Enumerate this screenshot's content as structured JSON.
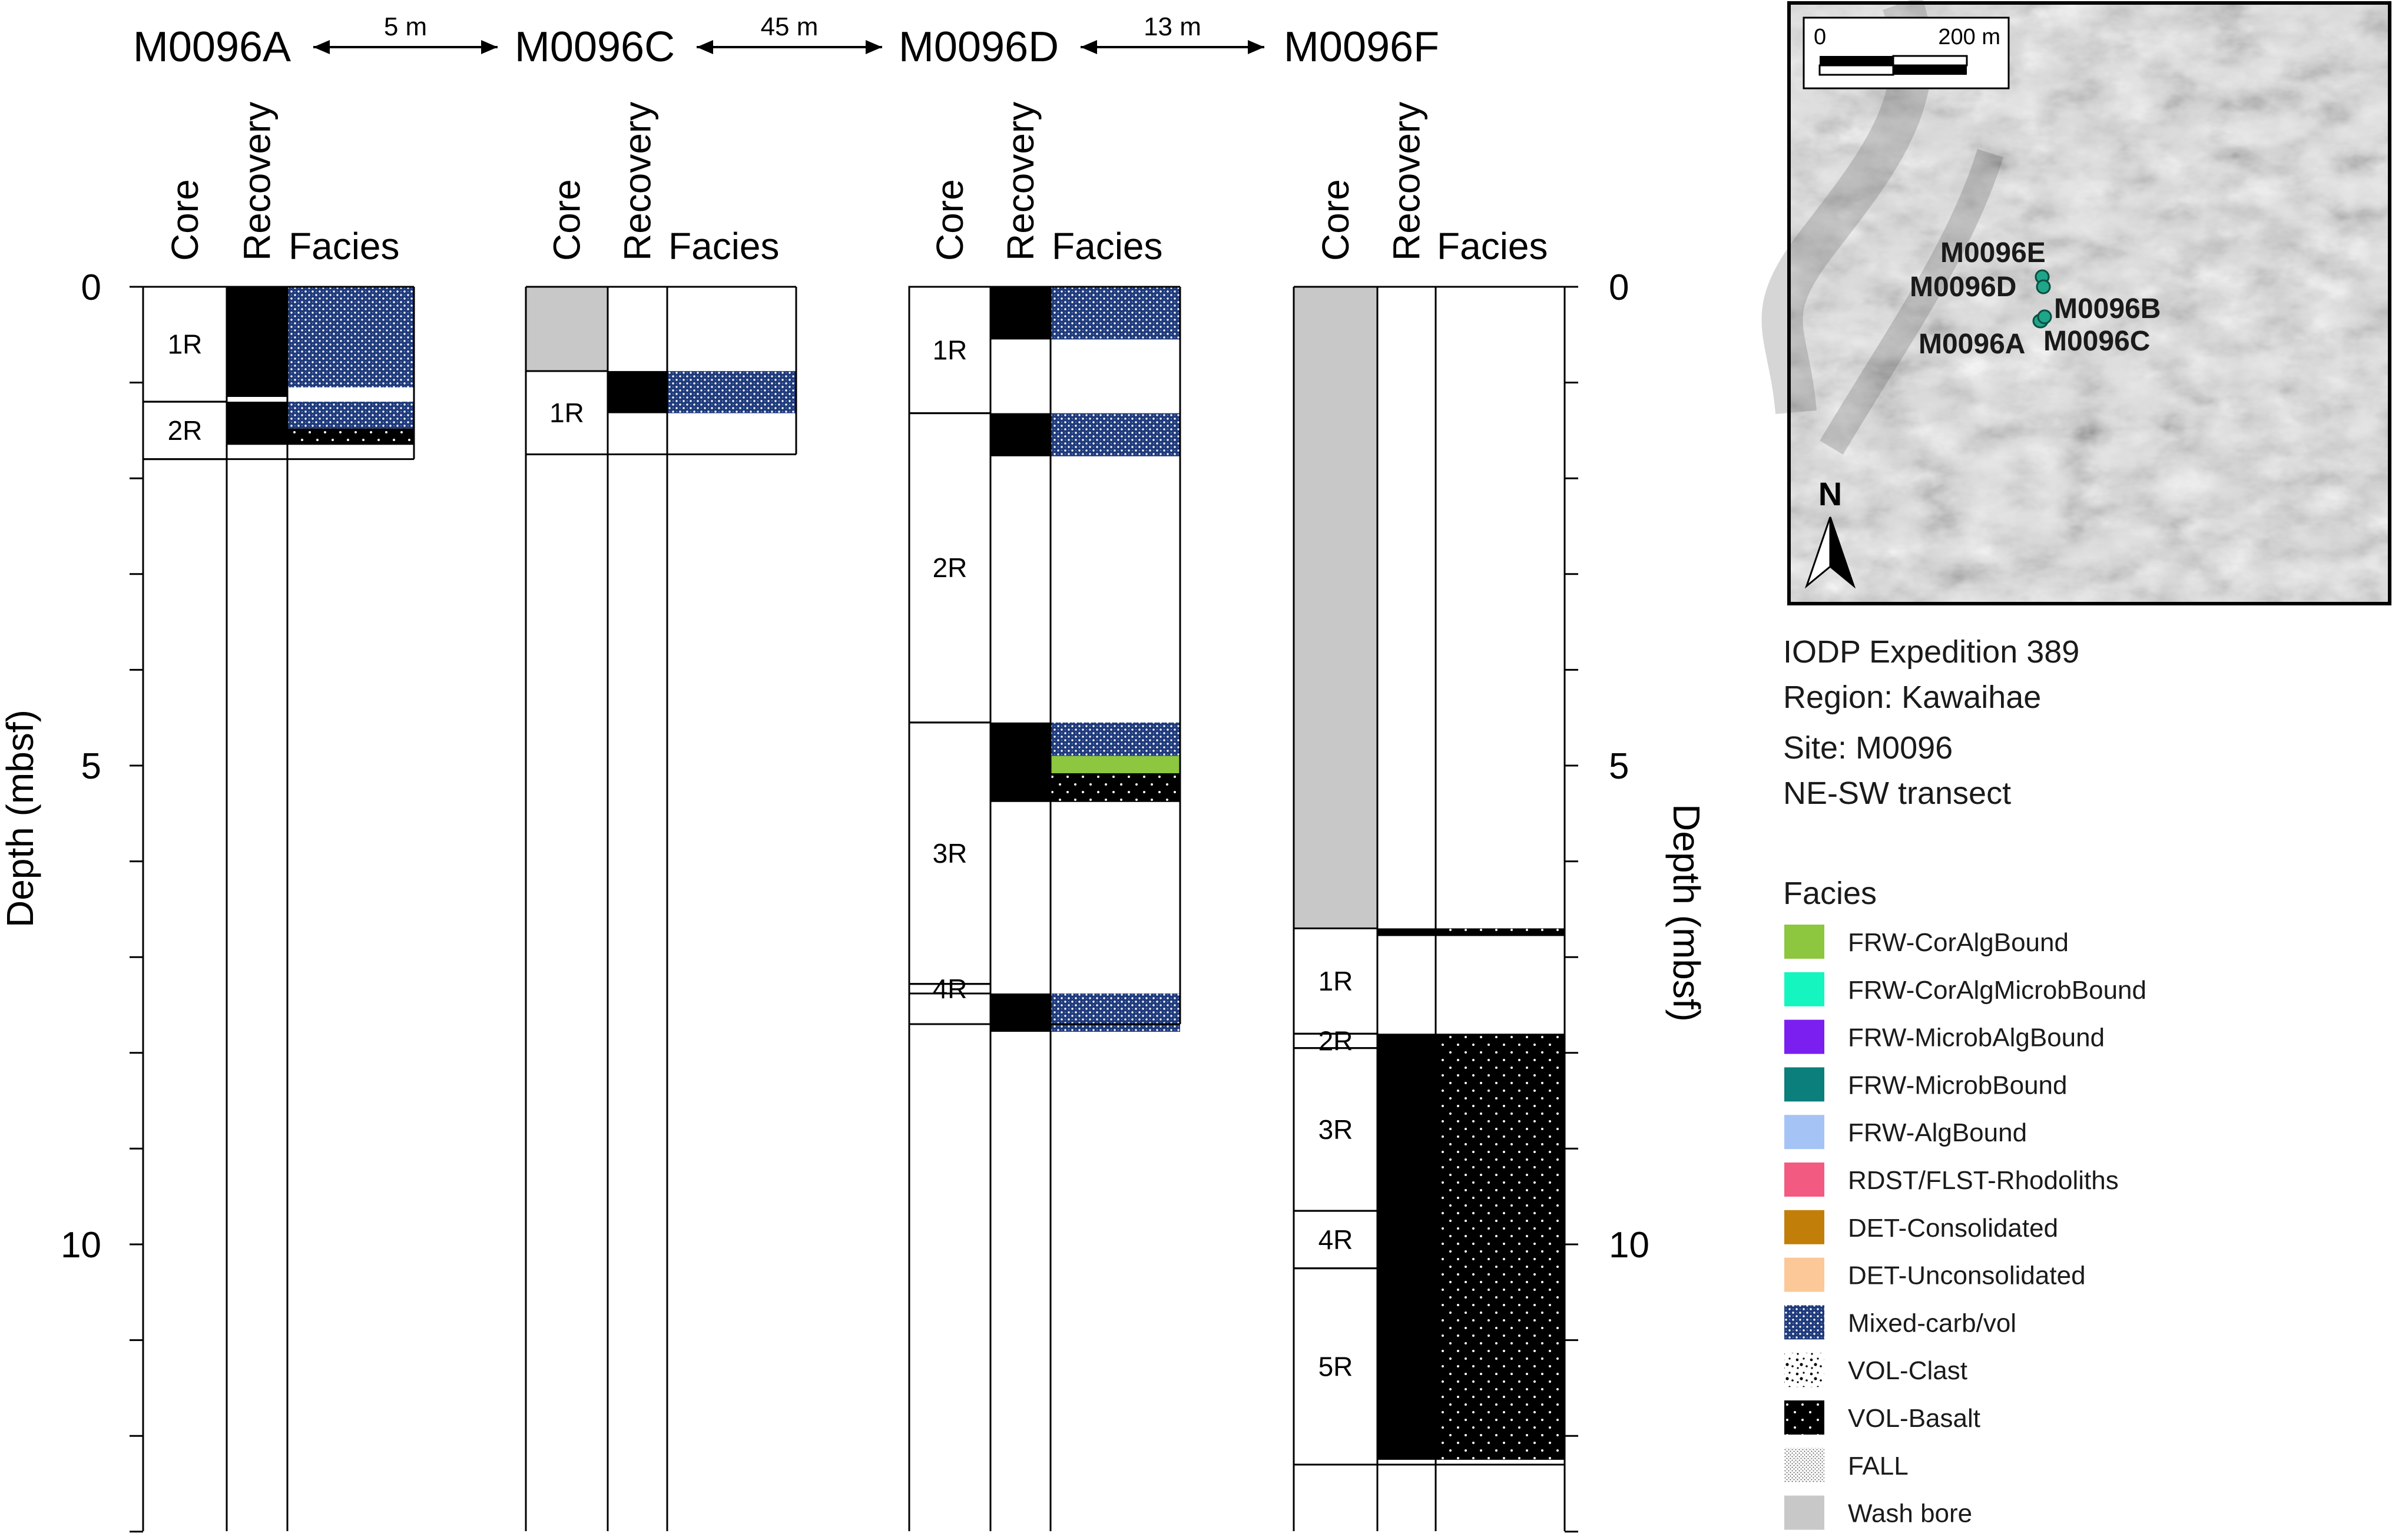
{
  "depth_axis": {
    "label": "Depth (mbsf)",
    "range": [
      0,
      13
    ],
    "major_ticks": [
      0,
      5,
      10
    ],
    "minor_step": 1
  },
  "column_headers": {
    "core": "Core",
    "recovery": "Recovery",
    "facies": "Facies"
  },
  "sites": [
    {
      "name": "M0096A",
      "hole_bottom": 1.8,
      "cores": [
        {
          "label": "1R",
          "top": 0,
          "bottom": 1.2
        },
        {
          "label": "2R",
          "top": 1.2,
          "bottom": 1.8
        }
      ],
      "wash": [],
      "recovery": [
        {
          "top": 0,
          "bottom": 1.15
        },
        {
          "top": 1.2,
          "bottom": 1.65
        }
      ],
      "facies": [
        {
          "type": "Mixed-carb/vol",
          "top": 0,
          "bottom": 1.05
        },
        {
          "type": "Mixed-carb/vol",
          "top": 1.2,
          "bottom": 1.48
        },
        {
          "type": "VOL-Basalt",
          "top": 1.48,
          "bottom": 1.65
        }
      ]
    },
    {
      "name": "M0096C",
      "hole_bottom": 1.75,
      "cores": [
        {
          "label": "1R",
          "top": 0.88,
          "bottom": 1.75
        }
      ],
      "wash": [
        {
          "top": 0,
          "bottom": 0.88
        }
      ],
      "recovery": [
        {
          "top": 0.88,
          "bottom": 1.32
        }
      ],
      "facies": [
        {
          "type": "Mixed-carb/vol",
          "top": 0.88,
          "bottom": 1.32
        }
      ]
    },
    {
      "name": "M0096D",
      "hole_bottom": 7.7,
      "cores": [
        {
          "label": "1R",
          "top": 0,
          "bottom": 1.32
        },
        {
          "label": "2R",
          "top": 1.32,
          "bottom": 4.55
        },
        {
          "label": "3R",
          "top": 4.55,
          "bottom": 7.28
        },
        {
          "label": "4R",
          "top": 7.28,
          "bottom": 7.38
        }
      ],
      "wash": [],
      "recovery": [
        {
          "top": 0,
          "bottom": 0.55
        },
        {
          "top": 1.32,
          "bottom": 1.77
        },
        {
          "top": 4.55,
          "bottom": 5.38
        },
        {
          "top": 7.38,
          "bottom": 7.78
        }
      ],
      "facies": [
        {
          "type": "Mixed-carb/vol",
          "top": 0,
          "bottom": 0.55
        },
        {
          "type": "Mixed-carb/vol",
          "top": 1.32,
          "bottom": 1.77
        },
        {
          "type": "Mixed-carb/vol",
          "top": 4.55,
          "bottom": 4.9
        },
        {
          "type": "FRW-CorAlgBound",
          "top": 4.9,
          "bottom": 5.08
        },
        {
          "type": "VOL-Basalt",
          "top": 5.08,
          "bottom": 5.38
        },
        {
          "type": "Mixed-carb/vol",
          "top": 7.38,
          "bottom": 7.78
        }
      ]
    },
    {
      "name": "M0096F",
      "hole_bottom": 12.3,
      "cores": [
        {
          "label": "1R",
          "top": 6.7,
          "bottom": 7.8
        },
        {
          "label": "2R",
          "top": 7.8,
          "bottom": 7.95
        },
        {
          "label": "3R",
          "top": 7.95,
          "bottom": 9.65
        },
        {
          "label": "4R",
          "top": 9.65,
          "bottom": 10.25
        },
        {
          "label": "5R",
          "top": 10.25,
          "bottom": 12.3
        }
      ],
      "wash": [
        {
          "top": 0,
          "bottom": 6.7
        }
      ],
      "recovery": [
        {
          "top": 6.7,
          "bottom": 6.78
        },
        {
          "top": 7.8,
          "bottom": 12.25
        }
      ],
      "facies": [
        {
          "type": "VOL-Basalt",
          "top": 6.7,
          "bottom": 6.78
        },
        {
          "type": "VOL-Basalt",
          "top": 7.8,
          "bottom": 12.25
        }
      ]
    }
  ],
  "spacings": [
    "5 m",
    "45 m",
    "13 m"
  ],
  "map": {
    "scale_start": "0",
    "scale_end": "200 m",
    "north": "N",
    "labels": [
      "M0096E",
      "M0096D",
      "M0096B",
      "M0096A",
      "M0096C"
    ]
  },
  "info": [
    "IODP Expedition 389",
    "Region: Kawaihae",
    "Site: M0096",
    "NE-SW transect"
  ],
  "legend": {
    "title": "Facies",
    "items": [
      {
        "label": "FRW-CorAlgBound",
        "color": "#8dc63f",
        "pattern": "solid"
      },
      {
        "label": "FRW-CorAlgMicrobBound",
        "color": "#14f5c0",
        "pattern": "solid"
      },
      {
        "label": "FRW-MicrobAlgBound",
        "color": "#7a1ff0",
        "pattern": "solid"
      },
      {
        "label": "FRW-MicrobBound",
        "color": "#0a7f7c",
        "pattern": "solid"
      },
      {
        "label": "FRW-AlgBound",
        "color": "#a5c3f5",
        "pattern": "solid"
      },
      {
        "label": "RDST/FLST-Rhodoliths",
        "color": "#f25a82",
        "pattern": "solid"
      },
      {
        "label": "DET-Consolidated",
        "color": "#c17f0a",
        "pattern": "solid"
      },
      {
        "label": "DET-Unconsolidated",
        "color": "#fcc898",
        "pattern": "solid"
      },
      {
        "label": "Mixed-carb/vol",
        "color": "#1f3a7a",
        "pattern": "mixed"
      },
      {
        "label": "VOL-Clast",
        "color": "#000000",
        "pattern": "clast"
      },
      {
        "label": "VOL-Basalt",
        "color": "#000000",
        "pattern": "basalt"
      },
      {
        "label": "FALL",
        "color": "#cccccc",
        "pattern": "fall"
      },
      {
        "label": "Wash bore",
        "color": "#c8c8c8",
        "pattern": "solid"
      }
    ]
  }
}
